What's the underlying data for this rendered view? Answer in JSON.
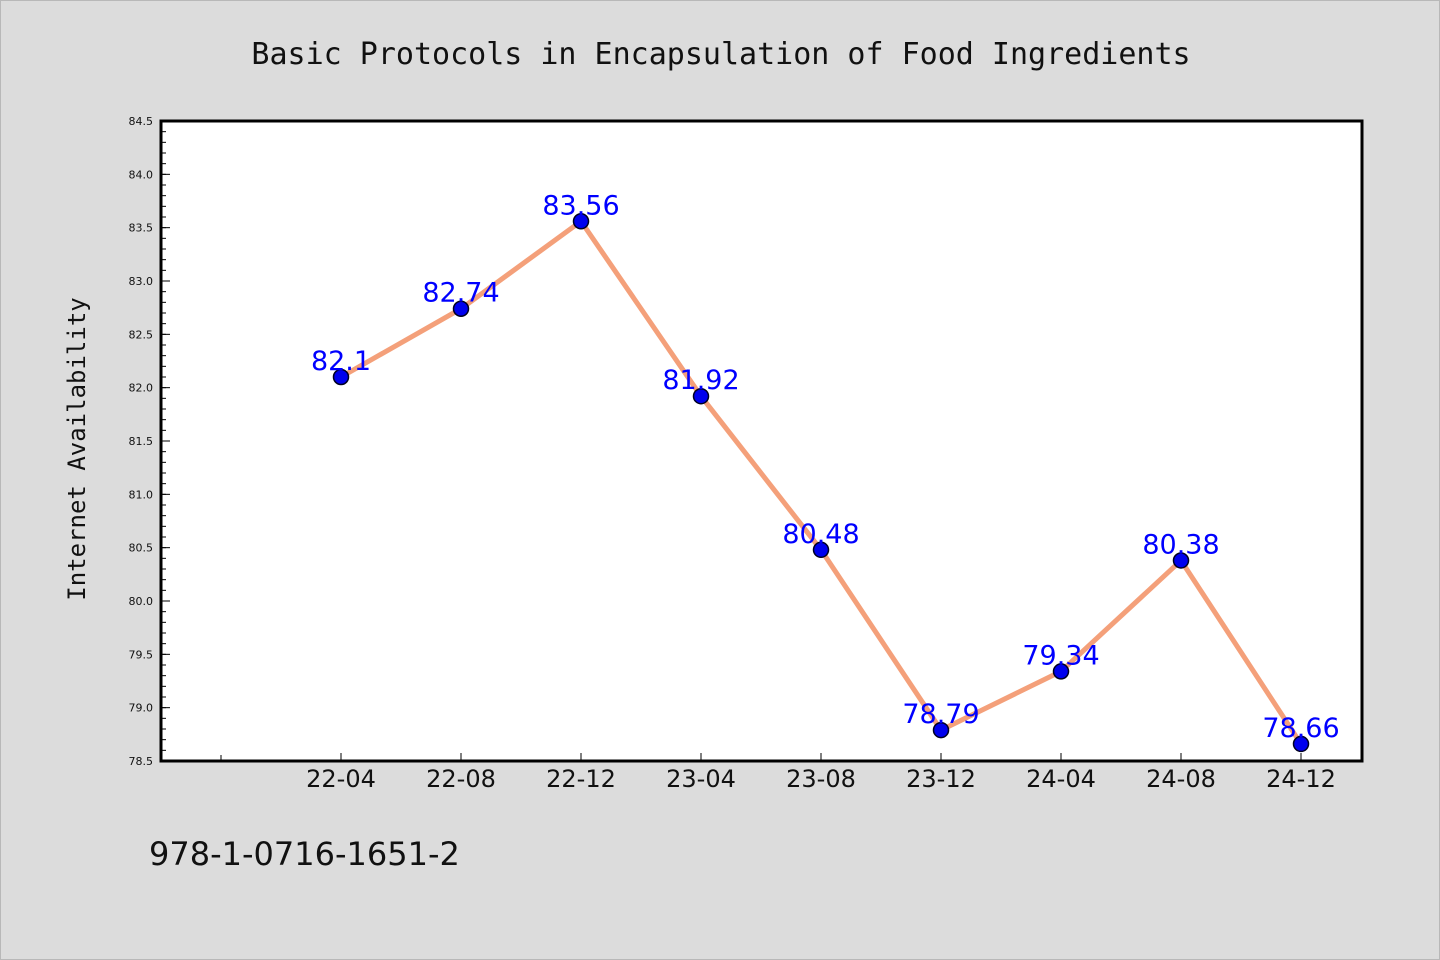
{
  "chart_data": {
    "type": "line",
    "title": "Basic Protocols in Encapsulation of Food Ingredients",
    "xlabel": "",
    "ylabel": "Internet Availability",
    "categories": [
      "22-04",
      "22-08",
      "22-12",
      "23-04",
      "23-08",
      "23-12",
      "24-04",
      "24-08",
      "24-12"
    ],
    "series": [
      {
        "values": [
          82.1,
          82.74,
          83.56,
          81.92,
          80.48,
          78.79,
          79.34,
          80.38,
          78.66
        ],
        "data_labels": [
          "82.1",
          "82.74",
          "83.56",
          "81.92",
          "80.48",
          "78.79",
          "79.34",
          "80.38",
          "78.66"
        ],
        "line_color": "#f4a07a",
        "marker_color": "#0000ee",
        "label_color": "#0000ff"
      }
    ],
    "ylim": [
      78.5,
      84.5
    ],
    "yticks": [
      "78.5",
      "79.0",
      "79.5",
      "80.0",
      "80.5",
      "81.0",
      "81.5",
      "82.0",
      "82.5",
      "83.0",
      "83.5",
      "84.0",
      "84.5"
    ],
    "grid": false,
    "legend": "none"
  },
  "footnote": "978-1-0716-1651-2",
  "colors": {
    "background": "#dcdcdc",
    "plot_area": "#ffffff",
    "axis": "#000000"
  }
}
